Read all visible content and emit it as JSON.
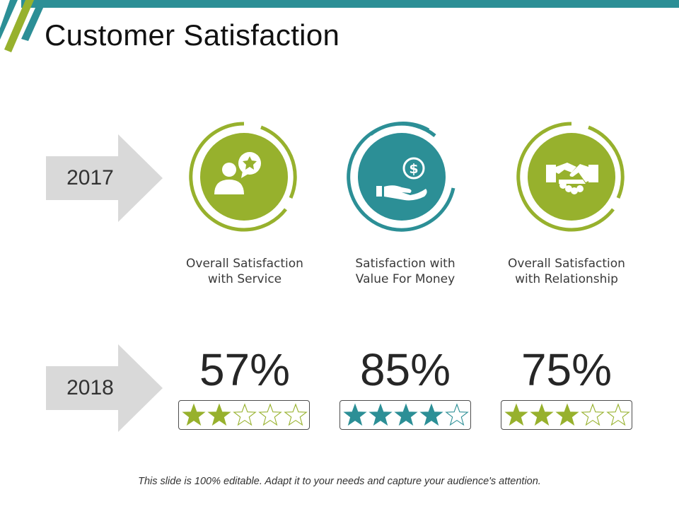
{
  "slide": {
    "title": "Customer Satisfaction",
    "footer": "This slide is 100% editable. Adapt it to your needs and capture your audience's attention."
  },
  "colors": {
    "green": "#97b12d",
    "teal": "#2c8f96",
    "arrow_gray": "#d9d9d9",
    "top_bar": "#2c8f96"
  },
  "years": [
    "2017",
    "2018"
  ],
  "metrics": [
    {
      "label_line1": "Overall Satisfaction",
      "label_line2": "with Service",
      "value": "57%",
      "rating": 2,
      "max_rating": 5,
      "color": "#97b12d",
      "icon": "user-review-star-icon"
    },
    {
      "label_line1": "Satisfaction with",
      "label_line2": "Value For Money",
      "value": "85%",
      "rating": 4,
      "max_rating": 5,
      "color": "#2c8f96",
      "icon": "hand-dollar-coin-icon"
    },
    {
      "label_line1": "Overall Satisfaction",
      "label_line2": "with Relationship",
      "value": "75%",
      "rating": 3,
      "max_rating": 5,
      "color": "#97b12d",
      "icon": "handshake-icon"
    }
  ]
}
